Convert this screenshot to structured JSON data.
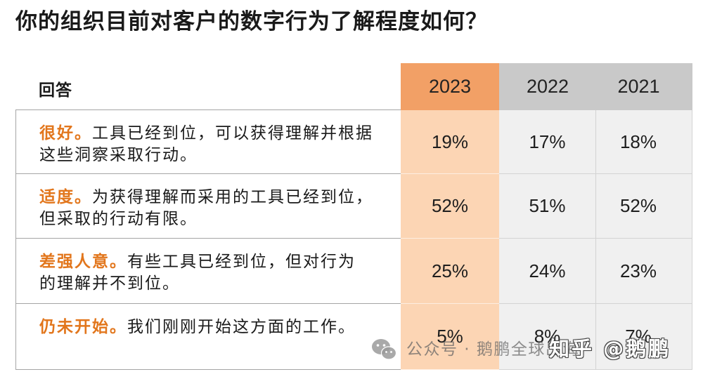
{
  "colors": {
    "header_orange": "#F2A066",
    "body_orange": "#FCD5B4",
    "header_gray": "#C9C9C9",
    "body_gray": "#F0F0F0",
    "label_orange": "#E2761C",
    "text": "#1A1A1A"
  },
  "chart_data": {
    "type": "table",
    "title": "你的组织目前对客户的数字行为了解程度如何？",
    "row_header_label": "回答",
    "columns": [
      "2023",
      "2022",
      "2021"
    ],
    "unit": "%",
    "rows": [
      {
        "label": "很好。",
        "description": [
          "工具已经到位，可以获得理解并根据",
          "这些洞察采取行动。"
        ],
        "values": [
          19,
          17,
          18
        ]
      },
      {
        "label": "适度。",
        "description": [
          "为获得理解而采用的工具已经到位，",
          "但采取的行动有限。"
        ],
        "values": [
          52,
          51,
          52
        ]
      },
      {
        "label": "差强人意。",
        "description": [
          "有些工具已经到位，但对行为",
          "的理解并不到位。"
        ],
        "values": [
          25,
          24,
          23
        ]
      },
      {
        "label": "仍未开始。",
        "description": [
          "我们刚刚开始这方面的工作。"
        ],
        "values": [
          5,
          8,
          7
        ]
      }
    ]
  },
  "watermark": {
    "wechat_icon": "wechat-icon",
    "wechat_text": "公众号 · 鹅鹏全球出海",
    "zhihu_text": "知乎 @鹅鹏"
  }
}
